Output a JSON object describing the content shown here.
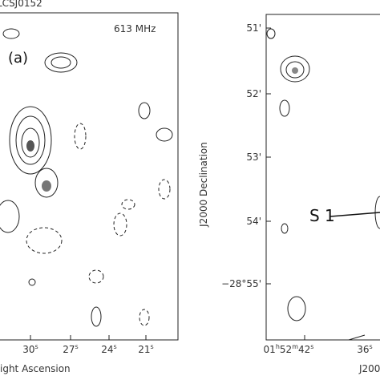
{
  "left_panel": {
    "source": "LCSJ0152",
    "frequency": "613 MHz",
    "panel_label": "(a)",
    "x_ticks": [
      [
        "30",
        "s"
      ],
      [
        "27",
        "s"
      ],
      [
        "24",
        "s"
      ],
      [
        "21",
        "s"
      ]
    ],
    "x_label": "ight Ascension"
  },
  "right_panel": {
    "y_ticks": [
      "51'",
      "52'",
      "53'",
      "54'",
      "−28°55'"
    ],
    "y_label": "J2000 Declination",
    "source_label": "S 1",
    "x_ticks": [
      [
        "01",
        "h",
        "52",
        "m",
        "42",
        "s"
      ],
      [
        "36",
        "s"
      ]
    ],
    "x_label": "J200"
  }
}
